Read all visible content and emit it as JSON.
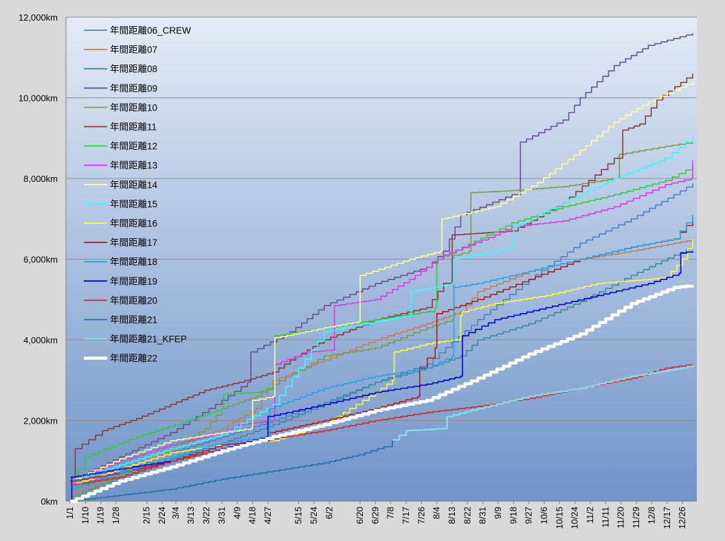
{
  "chart_data": {
    "type": "line",
    "title": "",
    "xlabel": "",
    "ylabel": "",
    "y_unit_suffix": "km",
    "ylim": [
      0,
      12000
    ],
    "yticks": [
      0,
      2000,
      4000,
      6000,
      8000,
      10000,
      12000
    ],
    "ytick_labels": [
      "0km",
      "2,000km",
      "4,000km",
      "6,000km",
      "8,000km",
      "10,000km",
      "12,000km"
    ],
    "xlim": [
      1,
      366
    ],
    "xtick_labels": [
      "1/1",
      "1/10",
      "1/19",
      "1/28",
      "2/15",
      "2/24",
      "3/4",
      "3/13",
      "3/22",
      "3/31",
      "4/9",
      "4/18",
      "4/27",
      "5/15",
      "5/24",
      "6/2",
      "6/20",
      "6/29",
      "7/8",
      "7/17",
      "7/26",
      "8/4",
      "8/13",
      "8/22",
      "8/31",
      "9/9",
      "9/18",
      "9/27",
      "10/6",
      "10/15",
      "10/24",
      "11/2",
      "11/11",
      "11/20",
      "11/29",
      "12/8",
      "12/17",
      "12/26"
    ],
    "xtick_days": [
      1,
      10,
      19,
      28,
      46,
      55,
      63,
      72,
      81,
      90,
      99,
      108,
      117,
      135,
      144,
      153,
      171,
      180,
      189,
      198,
      207,
      216,
      225,
      234,
      243,
      252,
      261,
      270,
      279,
      288,
      297,
      306,
      315,
      324,
      333,
      342,
      351,
      360
    ],
    "grid": "horizontal",
    "legend_position": "top-left",
    "series": [
      {
        "name": "年間距離06_CREW",
        "color": "#4f81bd",
        "width": 1.6,
        "x": [
          1,
          30,
          60,
          90,
          120,
          150,
          180,
          210,
          240,
          270,
          300,
          330,
          355,
          366
        ],
        "y": [
          300,
          750,
          1200,
          1600,
          2000,
          2450,
          2950,
          3400,
          4500,
          5500,
          6400,
          7000,
          7600,
          7880
        ]
      },
      {
        "name": "年間距離07",
        "color": "#c0804f",
        "width": 1.6,
        "x": [
          1,
          30,
          60,
          90,
          110,
          120,
          150,
          180,
          210,
          230,
          240,
          270,
          300,
          330,
          366
        ],
        "y": [
          200,
          700,
          1300,
          1800,
          2300,
          3000,
          3500,
          4000,
          4400,
          4700,
          5200,
          5700,
          6000,
          6200,
          6480
        ]
      },
      {
        "name": "年間距離08",
        "color": "#3c89a6",
        "width": 1.6,
        "x": [
          1,
          30,
          60,
          90,
          120,
          150,
          180,
          210,
          230,
          240,
          270,
          300,
          330,
          355,
          366
        ],
        "y": [
          100,
          600,
          1050,
          1450,
          1900,
          2400,
          2950,
          3300,
          3600,
          4000,
          4400,
          4950,
          5600,
          6100,
          6300
        ]
      },
      {
        "name": "年間距離09",
        "color": "#6b4f94",
        "width": 1.6,
        "x": [
          1,
          30,
          60,
          90,
          105,
          107,
          130,
          150,
          180,
          210,
          220,
          230,
          260,
          265,
          290,
          300,
          320,
          340,
          366
        ],
        "y": [
          500,
          1100,
          1700,
          2500,
          2950,
          3700,
          4200,
          4850,
          5400,
          5800,
          6200,
          7100,
          7600,
          8900,
          9450,
          10000,
          10800,
          11300,
          11600
        ]
      },
      {
        "name": "年間距離10",
        "color": "#7f9a48",
        "width": 1.6,
        "x": [
          1,
          30,
          60,
          80,
          90,
          110,
          120,
          150,
          180,
          210,
          225,
          226,
          235,
          236,
          260,
          290,
          320,
          323,
          350,
          366
        ],
        "y": [
          100,
          650,
          1250,
          1800,
          2300,
          2600,
          2900,
          3600,
          3800,
          4300,
          4500,
          6100,
          6200,
          7650,
          7700,
          7800,
          8000,
          8600,
          8800,
          8900
        ]
      },
      {
        "name": "年間距離11",
        "color": "#8b3a3a",
        "width": 1.6,
        "x": [
          1,
          4,
          20,
          40,
          60,
          80,
          100,
          120,
          130,
          150,
          180,
          210,
          220,
          225,
          260,
          290,
          320,
          325,
          335,
          345,
          366
        ],
        "y": [
          600,
          1300,
          1750,
          2050,
          2400,
          2750,
          2950,
          3200,
          3500,
          4000,
          4500,
          4800,
          5400,
          6600,
          6700,
          7400,
          8500,
          9200,
          9350,
          9950,
          10600
        ]
      },
      {
        "name": "年間距離12",
        "color": "#33cc33",
        "width": 1.6,
        "x": [
          1,
          10,
          40,
          70,
          90,
          91,
          110,
          120,
          121,
          150,
          180,
          210,
          215,
          216,
          260,
          290,
          320,
          350,
          366
        ],
        "y": [
          500,
          1100,
          1600,
          2000,
          2300,
          2650,
          2700,
          2800,
          4100,
          4300,
          4500,
          4700,
          4800,
          6000,
          6900,
          7300,
          7600,
          7950,
          8300
        ]
      },
      {
        "name": "年間距離13",
        "color": "#e535e5",
        "width": 1.6,
        "x": [
          1,
          30,
          60,
          90,
          100,
          120,
          121,
          140,
          155,
          156,
          180,
          200,
          220,
          250,
          260,
          290,
          320,
          350,
          365,
          366
        ],
        "y": [
          500,
          1000,
          1400,
          1700,
          1900,
          2000,
          3400,
          3700,
          3750,
          4850,
          5000,
          5500,
          6100,
          6600,
          6800,
          6950,
          7300,
          7850,
          8000,
          8450
        ]
      },
      {
        "name": "年間距離14",
        "color": "#ffff99",
        "width": 1.6,
        "x": [
          1,
          30,
          60,
          90,
          107,
          108,
          120,
          121,
          150,
          170,
          171,
          200,
          218,
          219,
          250,
          275,
          300,
          320,
          340,
          366
        ],
        "y": [
          500,
          1050,
          1500,
          1700,
          1800,
          2500,
          2600,
          4050,
          4300,
          4450,
          5600,
          6000,
          6200,
          7000,
          7300,
          7900,
          8700,
          9400,
          9900,
          10400
        ]
      },
      {
        "name": "年間距離15",
        "color": "#33ffff",
        "width": 1.6,
        "x": [
          1,
          30,
          60,
          90,
          120,
          150,
          180,
          200,
          201,
          225,
          226,
          250,
          260,
          261,
          290,
          320,
          350,
          366
        ],
        "y": [
          500,
          900,
          1300,
          1650,
          2400,
          4200,
          4450,
          4600,
          5200,
          5400,
          6000,
          6200,
          6300,
          6800,
          7400,
          8000,
          8500,
          9050
        ]
      },
      {
        "name": "年間距離16",
        "color": "#ffff33",
        "width": 1.6,
        "x": [
          1,
          30,
          60,
          90,
          120,
          150,
          180,
          190,
          191,
          210,
          225,
          230,
          231,
          250,
          280,
          310,
          340,
          350,
          360,
          366
        ],
        "y": [
          400,
          800,
          1200,
          1400,
          1500,
          1900,
          2700,
          3000,
          3700,
          3900,
          4000,
          4600,
          4700,
          4900,
          5100,
          5400,
          5500,
          5550,
          6000,
          6500
        ]
      },
      {
        "name": "年間距離17",
        "color": "#b01c1c",
        "width": 1.6,
        "x": [
          1,
          30,
          60,
          90,
          117,
          118,
          150,
          180,
          205,
          206,
          215,
          216,
          240,
          270,
          300,
          330,
          355,
          366
        ],
        "y": [
          500,
          700,
          1000,
          1400,
          1500,
          1700,
          2000,
          2300,
          2600,
          3300,
          3800,
          4650,
          5000,
          5500,
          6000,
          6300,
          6500,
          7000
        ]
      },
      {
        "name": "年間距離18",
        "color": "#24a4e5",
        "width": 1.6,
        "x": [
          1,
          30,
          60,
          90,
          117,
          118,
          150,
          180,
          210,
          225,
          226,
          240,
          270,
          300,
          330,
          355,
          366
        ],
        "y": [
          300,
          700,
          1100,
          1450,
          1600,
          2300,
          2800,
          3100,
          3300,
          3600,
          5300,
          5400,
          5700,
          6000,
          6300,
          6500,
          7100
        ]
      },
      {
        "name": "年間距離19",
        "color": "#0000cc",
        "width": 1.6,
        "x": [
          1,
          2,
          30,
          60,
          90,
          116,
          117,
          150,
          180,
          210,
          230,
          231,
          250,
          280,
          310,
          340,
          358,
          359,
          366
        ],
        "y": [
          0,
          600,
          800,
          1000,
          1300,
          1600,
          2100,
          2400,
          2700,
          2900,
          3100,
          4100,
          4500,
          4800,
          5100,
          5400,
          5650,
          6150,
          6200
        ]
      },
      {
        "name": "年間距離20",
        "color": "#dd2222",
        "width": 1.6,
        "x": [
          1,
          30,
          60,
          90,
          120,
          150,
          180,
          210,
          240,
          270,
          300,
          330,
          350,
          366
        ],
        "y": [
          400,
          600,
          1000,
          1300,
          1550,
          1750,
          2000,
          2200,
          2350,
          2550,
          2800,
          3050,
          3300,
          3400
        ]
      },
      {
        "name": "年間距離21",
        "color": "#1f6fa8",
        "width": 1.6,
        "x": [
          1,
          30,
          60,
          90,
          120,
          150,
          170,
          185,
          190
        ],
        "y": [
          0,
          150,
          300,
          550,
          750,
          950,
          1150,
          1350,
          1520
        ]
      },
      {
        "name": "年間距離21_KFEP",
        "color": "#8ad8e6",
        "width": 2.4,
        "x": [
          190,
          198,
          220,
          222,
          240,
          270,
          300,
          330,
          360,
          366
        ],
        "y": [
          1520,
          1750,
          1800,
          2100,
          2300,
          2600,
          2800,
          3100,
          3300,
          3380
        ]
      },
      {
        "name": "年間距離22",
        "color": "#ffffff",
        "width": 4.5,
        "x": [
          1,
          30,
          60,
          90,
          120,
          150,
          180,
          210,
          240,
          270,
          300,
          330,
          355,
          366
        ],
        "y": [
          0,
          500,
          850,
          1250,
          1600,
          1900,
          2250,
          2500,
          3050,
          3650,
          4150,
          4900,
          5300,
          5350
        ]
      }
    ]
  }
}
